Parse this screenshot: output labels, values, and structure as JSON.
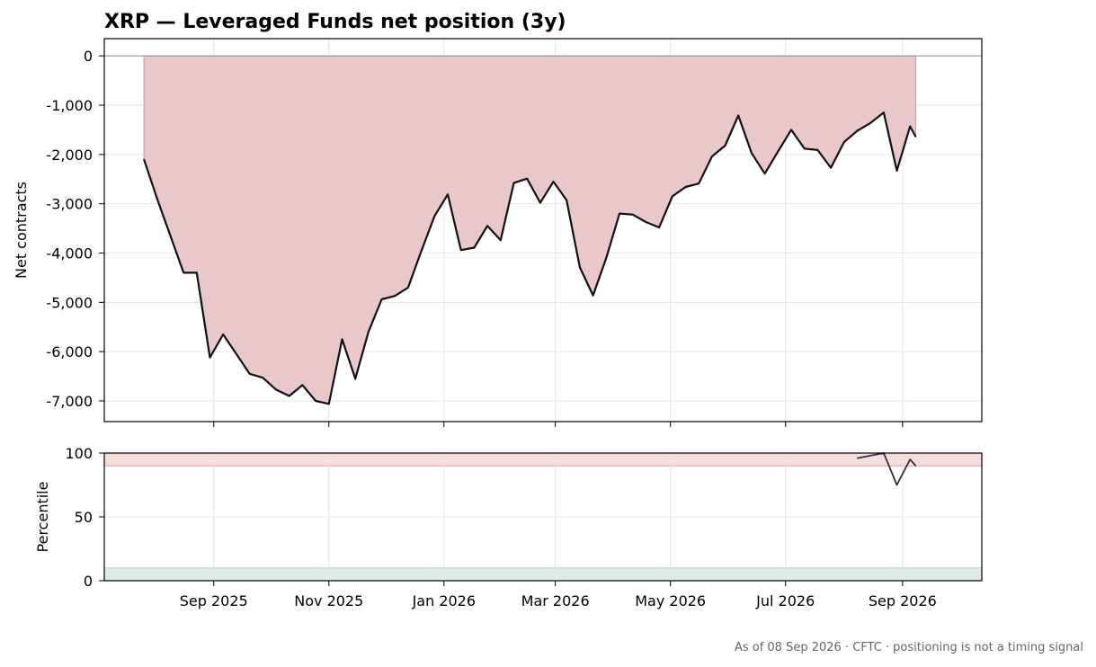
{
  "chart_data": [
    {
      "type": "area",
      "title": "XRP — Leveraged Funds net position (3y)",
      "ylabel": "Net contracts",
      "xlabel": "",
      "ylim": [
        -7420,
        350
      ],
      "yticks": [
        0,
        -1000,
        -2000,
        -3000,
        -4000,
        -5000,
        -6000,
        -7000
      ],
      "ytick_labels": [
        "0",
        "-1,000",
        "-2,000",
        "-3,000",
        "-4,000",
        "-5,000",
        "-6,000",
        "-7,000"
      ],
      "xlim": [
        "2025-07-05",
        "2026-10-13"
      ],
      "xticks": [
        "2025-09-01",
        "2025-11-01",
        "2026-01-01",
        "2026-03-01",
        "2026-05-01",
        "2026-07-01",
        "2026-09-01"
      ],
      "xtick_labels": [
        "Sep 2025",
        "Nov 2025",
        "Jan 2026",
        "Mar 2026",
        "May 2026",
        "Jul 2026",
        "Sep 2026"
      ],
      "grid": true,
      "zero_line": true,
      "fill_color": "#e8c8cb",
      "line_color": "#111111",
      "series": [
        {
          "x": [
            "2025-07-26",
            "2025-08-02",
            "2025-08-09",
            "2025-08-16",
            "2025-08-23",
            "2025-08-30",
            "2025-09-06",
            "2025-09-13",
            "2025-09-20",
            "2025-09-27",
            "2025-10-04",
            "2025-10-11",
            "2025-10-18",
            "2025-10-25",
            "2025-11-01",
            "2025-11-08",
            "2025-11-15",
            "2025-11-22",
            "2025-11-29",
            "2025-12-06",
            "2025-12-13",
            "2025-12-20",
            "2025-12-27",
            "2026-01-03",
            "2026-01-10",
            "2026-01-17",
            "2026-01-24",
            "2026-01-31",
            "2026-02-07",
            "2026-02-14",
            "2026-02-21",
            "2026-02-28",
            "2026-03-07",
            "2026-03-14",
            "2026-03-21",
            "2026-03-28",
            "2026-04-04",
            "2026-04-11",
            "2026-04-18",
            "2026-04-25",
            "2026-05-02",
            "2026-05-09",
            "2026-05-16",
            "2026-05-23",
            "2026-05-30",
            "2026-06-06",
            "2026-06-13",
            "2026-06-20",
            "2026-06-27",
            "2026-07-04",
            "2026-07-11",
            "2026-07-18",
            "2026-07-25",
            "2026-08-01",
            "2026-08-08",
            "2026-08-15",
            "2026-08-22",
            "2026-08-29",
            "2026-09-05",
            "2026-09-08"
          ],
          "values": [
            -2100,
            -2900,
            -3650,
            -4400,
            -4400,
            -6120,
            -5650,
            -6050,
            -6450,
            -6530,
            -6770,
            -6900,
            -6680,
            -7000,
            -7060,
            -5750,
            -6550,
            -5600,
            -4940,
            -4870,
            -4700,
            -3960,
            -3250,
            -2810,
            -3940,
            -3890,
            -3450,
            -3740,
            -2580,
            -2490,
            -2980,
            -2550,
            -2930,
            -4290,
            -4860,
            -4100,
            -3200,
            -3220,
            -3370,
            -3480,
            -2850,
            -2660,
            -2590,
            -2040,
            -1820,
            -1210,
            -1970,
            -2390,
            -1940,
            -1500,
            -1880,
            -1910,
            -2270,
            -1750,
            -1520,
            -1360,
            -1150,
            -2330,
            -1430,
            -1640
          ]
        }
      ]
    },
    {
      "type": "line",
      "ylabel": "Percentile",
      "ylim": [
        0,
        100
      ],
      "yticks": [
        0,
        50,
        100
      ],
      "ytick_labels": [
        "0",
        "50",
        "100"
      ],
      "xlim": [
        "2025-07-05",
        "2026-10-13"
      ],
      "grid": true,
      "bands": [
        {
          "from": 90,
          "to": 100,
          "color": "#f6dede",
          "edge": "#dba5a8"
        },
        {
          "from": 0,
          "to": 10,
          "color": "#dfece5",
          "edge": "#bcd6c6"
        }
      ],
      "line_color": "#333333",
      "series": [
        {
          "x": [
            "2026-08-08",
            "2026-08-22",
            "2026-08-29",
            "2026-09-05",
            "2026-09-08"
          ],
          "values": [
            96,
            100,
            75,
            95,
            90
          ]
        }
      ]
    }
  ],
  "footnote": "As of 08 Sep 2026 · CFTC · positioning is not a timing signal"
}
